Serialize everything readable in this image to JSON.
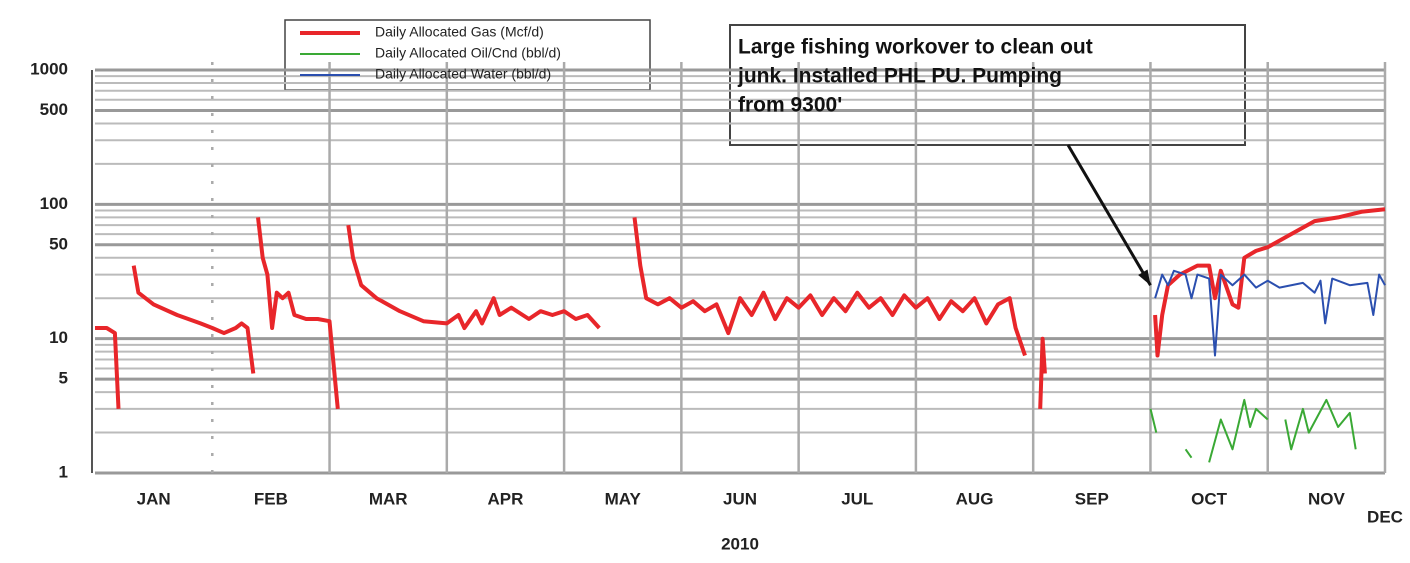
{
  "chart_data": {
    "type": "line",
    "xlabel": "2010",
    "xlim": [
      0,
      11
    ],
    "xticks": [
      {
        "value": 0.5,
        "label": "JAN"
      },
      {
        "value": 1.5,
        "label": "FEB"
      },
      {
        "value": 2.5,
        "label": "MAR"
      },
      {
        "value": 3.5,
        "label": "APR"
      },
      {
        "value": 4.5,
        "label": "MAY"
      },
      {
        "value": 5.5,
        "label": "JUN"
      },
      {
        "value": 6.5,
        "label": "JUL"
      },
      {
        "value": 7.5,
        "label": "AUG"
      },
      {
        "value": 8.5,
        "label": "SEP"
      },
      {
        "value": 9.5,
        "label": "OCT"
      },
      {
        "value": 10.5,
        "label": "NOV"
      },
      {
        "value": 11,
        "label": "DEC"
      }
    ],
    "xgrid": [
      1,
      2,
      3,
      4,
      5,
      6,
      7,
      8,
      9,
      10,
      11
    ],
    "ylim": [
      1,
      1000
    ],
    "yscale": "log",
    "yticks": [
      1,
      5,
      10,
      50,
      100,
      500,
      {
        "value": 1000,
        "label": "1000"
      }
    ],
    "grid": true,
    "annotation": {
      "lines": [
        "Large fishing workover to clean out",
        "junk.  Installed PHL PU.  Pumping",
        "from 9300'"
      ],
      "x": 9.0,
      "y": 25
    },
    "series": [
      {
        "name": "Daily Allocated Gas (Mcf/d)",
        "color": "#e8262a",
        "width": 4,
        "x": [
          0,
          0.1,
          0.17,
          0.2,
          0.25,
          0.33,
          0.37,
          0.5,
          0.7,
          0.9,
          1.0,
          1.1,
          1.2,
          1.25,
          1.3,
          1.35,
          1.37,
          1.39,
          1.43,
          1.47,
          1.51,
          1.55,
          1.6,
          1.65,
          1.7,
          1.8,
          1.9,
          2.0,
          2.07,
          2.1,
          2.16,
          2.2,
          2.27,
          2.4,
          2.6,
          2.8,
          3.0,
          3.1,
          3.15,
          3.25,
          3.3,
          3.4,
          3.45,
          3.55,
          3.7,
          3.8,
          3.9,
          4.0,
          4.1,
          4.2,
          4.3,
          4.4,
          4.6,
          4.65,
          4.7,
          4.8,
          4.9,
          5.0,
          5.1,
          5.2,
          5.3,
          5.4,
          5.5,
          5.6,
          5.7,
          5.8,
          5.9,
          6.0,
          6.1,
          6.2,
          6.3,
          6.4,
          6.5,
          6.6,
          6.7,
          6.8,
          6.9,
          7.0,
          7.1,
          7.2,
          7.3,
          7.4,
          7.5,
          7.6,
          7.7,
          7.8,
          7.85,
          7.93,
          8.0,
          8.06,
          8.08,
          8.1,
          8.5,
          9.04,
          9.06,
          9.1,
          9.15,
          9.25,
          9.4,
          9.5,
          9.55,
          9.6,
          9.7,
          9.75,
          9.8,
          9.9,
          10.0,
          10.2,
          10.4,
          10.6,
          10.8,
          11.0
        ],
        "values": [
          12,
          12,
          11,
          3,
          null,
          35,
          22,
          18,
          15,
          13,
          12,
          11,
          12,
          13,
          12,
          5.5,
          null,
          80,
          40,
          30,
          12,
          22,
          20,
          22,
          15,
          14,
          14,
          13.5,
          3,
          null,
          70,
          40,
          25,
          20,
          16,
          13.5,
          13,
          15,
          12,
          16,
          13,
          20,
          15,
          17,
          14,
          16,
          15,
          16,
          14,
          15,
          12,
          null,
          80,
          35,
          20,
          18,
          20,
          17,
          19,
          16,
          18,
          11,
          20,
          15,
          22,
          14,
          20,
          17,
          21,
          15,
          20,
          16,
          22,
          17,
          20,
          15,
          21,
          17,
          20,
          14,
          19,
          16,
          20,
          13,
          18,
          20,
          12,
          7.5,
          null,
          3,
          10,
          5.5,
          null,
          15,
          7.5,
          15,
          25,
          30,
          35,
          35,
          20,
          32,
          18,
          17,
          40,
          45,
          48,
          60,
          75,
          80,
          88,
          92
        ]
      },
      {
        "name": "Daily Allocated Oil/Cnd (bbl/d)",
        "color": "#3aa935",
        "width": 2,
        "x": [
          9.0,
          9.05,
          9.2,
          9.3,
          9.35,
          9.4,
          9.5,
          9.6,
          9.7,
          9.8,
          9.85,
          9.9,
          10.0,
          10.1,
          10.15,
          10.2,
          10.3,
          10.35,
          10.5,
          10.6,
          10.7,
          10.75,
          10.8,
          10.9,
          10.95,
          11.0
        ],
        "values": [
          3,
          2,
          null,
          1.5,
          1.3,
          null,
          1.2,
          2.5,
          1.5,
          3.5,
          2.2,
          3,
          2.5,
          null,
          2.5,
          1.5,
          3,
          2,
          3.5,
          2.2,
          2.8,
          1.5,
          null,
          1.8,
          null,
          1.8
        ]
      },
      {
        "name": "Daily Allocated Water (bbl/d)",
        "color": "#2b4faf",
        "width": 2,
        "x": [
          9.04,
          9.1,
          9.15,
          9.2,
          9.3,
          9.35,
          9.4,
          9.5,
          9.55,
          9.6,
          9.7,
          9.8,
          9.9,
          10.0,
          10.1,
          10.3,
          10.4,
          10.45,
          10.49,
          10.55,
          10.7,
          10.85,
          10.9,
          10.95,
          11.0
        ],
        "values": [
          20,
          30,
          25,
          32,
          30,
          20,
          30,
          28,
          7.5,
          30,
          25,
          30,
          24,
          27,
          24,
          26,
          22,
          27,
          13,
          28,
          25,
          26,
          15,
          30,
          25
        ]
      }
    ]
  }
}
